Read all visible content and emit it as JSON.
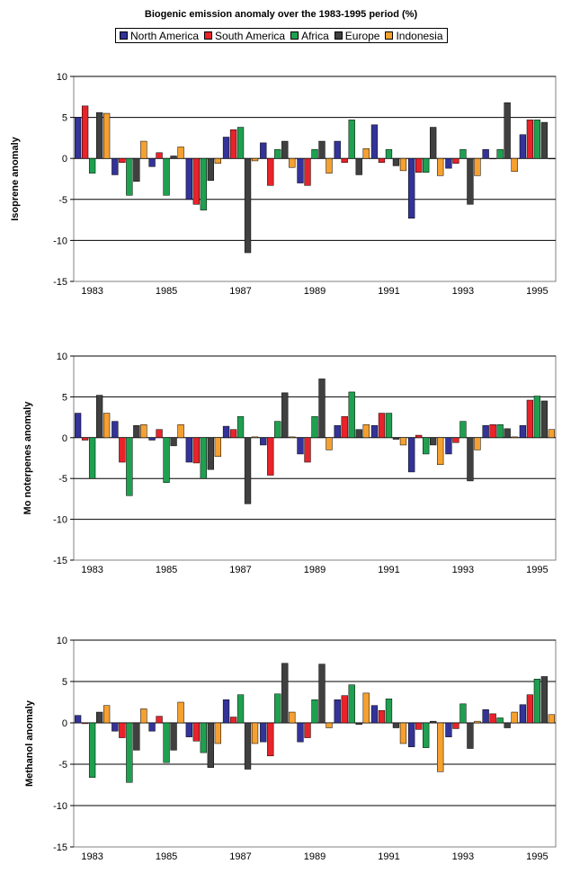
{
  "title": "Biogenic emission anomaly over the 1983-1995 period (%)",
  "legend": [
    {
      "name": "North America",
      "color": "#333399"
    },
    {
      "name": "South America",
      "color": "#e8232a"
    },
    {
      "name": "Africa",
      "color": "#1fa050"
    },
    {
      "name": "Europe",
      "color": "#404040"
    },
    {
      "name": "Indonesia",
      "color": "#f5a030"
    }
  ],
  "chart_data": [
    {
      "type": "bar",
      "ylabel": "Isoprene anomaly",
      "ylim": [
        -15,
        10
      ],
      "yticks": [
        "10",
        "5",
        "0",
        "-5",
        "-10",
        "-15"
      ],
      "categories": [
        "1983",
        "1984",
        "1985",
        "1986",
        "1987",
        "1988",
        "1989",
        "1990",
        "1991",
        "1992",
        "1993",
        "1994",
        "1995"
      ],
      "xticks": [
        "1983",
        "1985",
        "1987",
        "1989",
        "1991",
        "1993",
        "1995"
      ],
      "grid": true,
      "series": [
        {
          "name": "North America",
          "values": [
            5.0,
            -2.0,
            -1.0,
            -5.0,
            2.6,
            1.9,
            -3.0,
            2.1,
            4.1,
            -7.3,
            -1.2,
            1.1,
            2.9
          ]
        },
        {
          "name": "South America",
          "values": [
            6.4,
            -0.5,
            0.7,
            -5.6,
            3.5,
            -3.3,
            -3.3,
            -0.5,
            -0.5,
            -1.7,
            -0.6,
            0.0,
            4.7
          ]
        },
        {
          "name": "Africa",
          "values": [
            -1.8,
            -4.5,
            -4.5,
            -6.3,
            3.8,
            1.1,
            1.1,
            4.7,
            1.1,
            -1.7,
            1.1,
            1.1,
            4.7
          ]
        },
        {
          "name": "Europe",
          "values": [
            5.6,
            -2.8,
            0.3,
            -2.7,
            -11.5,
            2.1,
            2.1,
            -2.0,
            -0.9,
            3.8,
            -5.6,
            6.8,
            4.4
          ]
        },
        {
          "name": "Indonesia",
          "values": [
            5.5,
            2.1,
            1.4,
            -0.6,
            -0.3,
            -1.1,
            -1.8,
            1.2,
            -1.5,
            -2.1,
            -2.1,
            -1.6,
            0.0
          ]
        }
      ]
    },
    {
      "type": "bar",
      "ylabel": "Mo noterpenes anomaly",
      "ylim": [
        -15,
        10
      ],
      "yticks": [
        "10",
        "5",
        "0",
        "-5",
        "-10",
        "-15"
      ],
      "categories": [
        "1983",
        "1984",
        "1985",
        "1986",
        "1987",
        "1988",
        "1989",
        "1990",
        "1991",
        "1992",
        "1993",
        "1994",
        "1995"
      ],
      "xticks": [
        "1983",
        "1985",
        "1987",
        "1989",
        "1991",
        "1993",
        "1995"
      ],
      "grid": true,
      "series": [
        {
          "name": "North America",
          "values": [
            3.0,
            2.0,
            -0.3,
            -3.0,
            1.4,
            -0.9,
            -2.0,
            1.5,
            1.5,
            -4.2,
            -2.0,
            1.5,
            1.5
          ]
        },
        {
          "name": "South America",
          "values": [
            -0.3,
            -3.0,
            1.0,
            -3.1,
            1.0,
            -4.6,
            -3.0,
            2.6,
            3.0,
            0.3,
            -0.6,
            1.6,
            4.6
          ]
        },
        {
          "name": "Africa",
          "values": [
            -5.0,
            -7.1,
            -5.5,
            -5.0,
            2.6,
            2.0,
            2.6,
            5.6,
            3.0,
            -2.0,
            2.0,
            1.6,
            5.1
          ]
        },
        {
          "name": "Europe",
          "values": [
            5.2,
            1.5,
            -1.0,
            -3.9,
            -8.1,
            5.5,
            7.2,
            1.0,
            -0.2,
            -0.9,
            -5.3,
            1.1,
            4.5
          ]
        },
        {
          "name": "Indonesia",
          "values": [
            3.0,
            1.6,
            1.6,
            -2.3,
            0.1,
            0.1,
            -1.5,
            1.6,
            -0.9,
            -3.3,
            -1.5,
            0.1,
            1.0
          ]
        }
      ]
    },
    {
      "type": "bar",
      "ylabel": "Methanol anomaly",
      "ylim": [
        -15,
        10
      ],
      "yticks": [
        "10",
        "5",
        "0",
        "-5",
        "-10",
        "-15"
      ],
      "categories": [
        "1983",
        "1984",
        "1985",
        "1986",
        "1987",
        "1988",
        "1989",
        "1990",
        "1991",
        "1992",
        "1993",
        "1994",
        "1995"
      ],
      "xticks": [
        "1983",
        "1985",
        "1987",
        "1989",
        "1991",
        "1993",
        "1995"
      ],
      "grid": true,
      "series": [
        {
          "name": "North America",
          "values": [
            0.9,
            -1.0,
            -1.0,
            -1.7,
            2.8,
            -2.3,
            -2.3,
            2.8,
            2.1,
            -2.9,
            -1.7,
            1.6,
            2.2
          ]
        },
        {
          "name": "South America",
          "values": [
            -0.1,
            -1.8,
            0.8,
            -2.2,
            0.7,
            -4.0,
            -1.8,
            3.3,
            1.5,
            -0.8,
            -0.7,
            1.1,
            3.4
          ]
        },
        {
          "name": "Africa",
          "values": [
            -6.6,
            -7.2,
            -4.8,
            -3.6,
            3.4,
            3.5,
            2.8,
            4.6,
            2.9,
            -3.0,
            2.3,
            0.6,
            5.3
          ]
        },
        {
          "name": "Europe",
          "values": [
            1.3,
            -3.3,
            -3.3,
            -5.4,
            -5.6,
            7.2,
            7.1,
            -0.2,
            -0.6,
            0.2,
            -3.1,
            -0.6,
            5.6
          ]
        },
        {
          "name": "Indonesia",
          "values": [
            2.1,
            1.7,
            2.5,
            -2.5,
            -2.5,
            1.3,
            -0.6,
            3.6,
            -2.5,
            -5.9,
            0.2,
            1.3,
            1.0
          ]
        }
      ]
    }
  ]
}
